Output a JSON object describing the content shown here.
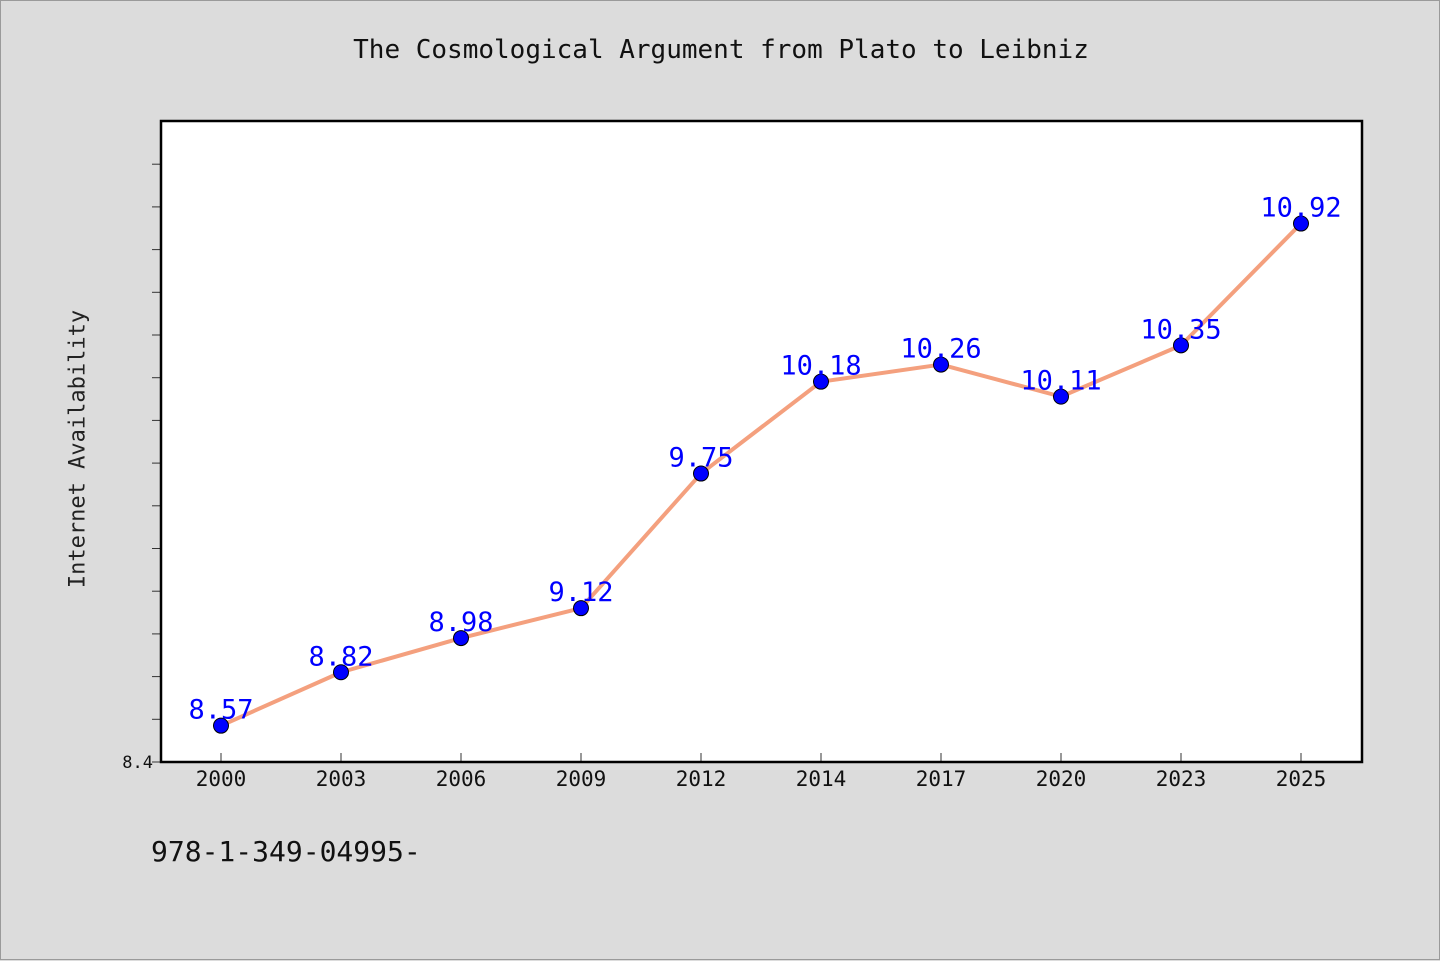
{
  "chart_data": {
    "type": "line",
    "title": "The Cosmological Argument from Plato to Leibniz",
    "xlabel": "",
    "ylabel": "Internet Availability",
    "categories": [
      "2000",
      "2003",
      "2006",
      "2009",
      "2012",
      "2014",
      "2017",
      "2020",
      "2023",
      "2025"
    ],
    "series": [
      {
        "values": [
          8.57,
          8.82,
          8.98,
          9.12,
          9.75,
          10.18,
          10.26,
          10.11,
          10.35,
          10.92
        ],
        "data_labels": [
          "8.57",
          "8.82",
          "8.98",
          "9.12",
          "9.75",
          "10.18",
          "10.26",
          "10.11",
          "10.35",
          "10.92"
        ],
        "line_color": "#f4a07e",
        "marker_color": "#0000ff"
      }
    ],
    "ytick_labels": [
      "8.4"
    ],
    "ylim": [
      8.4,
      11.4
    ],
    "grid": false,
    "label_color": "#0000ff"
  },
  "footer": {
    "code": "978-1-349-04995-"
  }
}
